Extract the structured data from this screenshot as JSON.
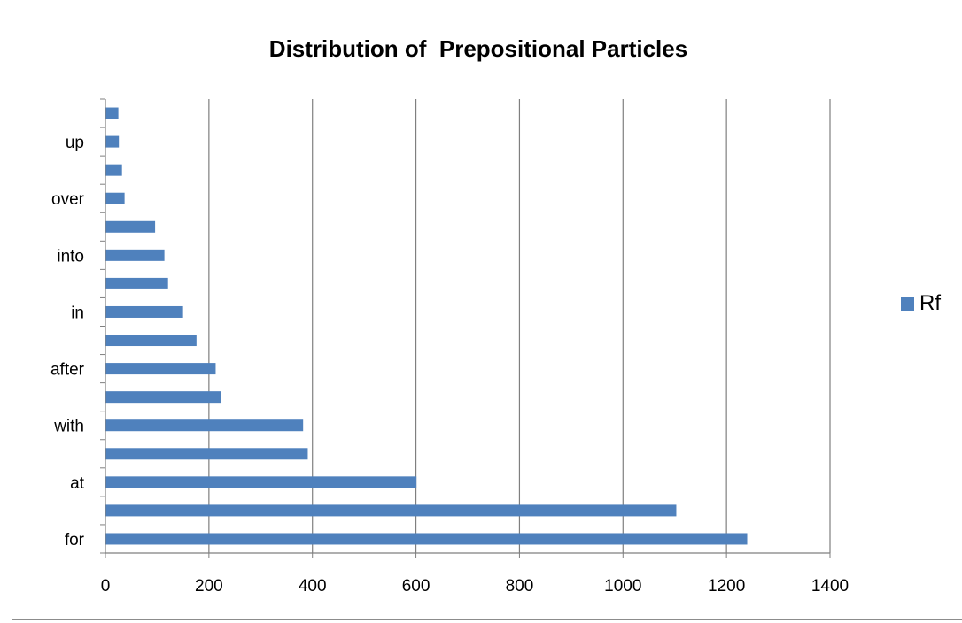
{
  "chart_data": {
    "type": "bar",
    "orientation": "horizontal",
    "title": "Distribution of  Prepositional Particles",
    "xlabel": "",
    "ylabel": "",
    "categories": [
      "for",
      "",
      "at",
      "",
      "with",
      "",
      "after",
      "",
      "in",
      "",
      "into",
      "",
      "over",
      "",
      "up",
      ""
    ],
    "series": [
      {
        "name": "Rf",
        "values": [
          1240,
          1103,
          601,
          391,
          382,
          224,
          213,
          176,
          150,
          121,
          114,
          96,
          37,
          32,
          26,
          25
        ]
      }
    ],
    "xlim": [
      0,
      1400
    ],
    "xticks": [
      "0",
      "200",
      "400",
      "600",
      "800",
      "1000",
      "1200",
      "1400"
    ],
    "grid": "vertical major gridlines",
    "legend_position": "right",
    "colors": {
      "bar": "#4f81bd",
      "gridline": "#7f7f7f",
      "axis": "#7f7f7f"
    }
  }
}
